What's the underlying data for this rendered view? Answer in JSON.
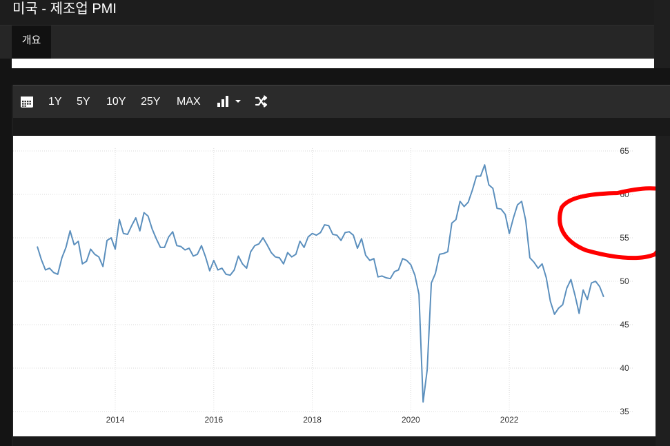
{
  "header": {
    "title": "미국 - 제조업 PMI"
  },
  "tabs": [
    {
      "label": "개요",
      "active": true
    }
  ],
  "toolbar": {
    "calendar_icon": "calendar-icon",
    "ranges": [
      "1Y",
      "5Y",
      "10Y",
      "25Y",
      "MAX"
    ],
    "chart_type_icon": "bar-chart-icon",
    "dropdown_icon": "caret-down-icon",
    "compare_icon": "shuffle-icon"
  },
  "colors": {
    "line": "#5b8fbd",
    "annotation": "#ff0000",
    "grid": "#d8d8d8"
  },
  "chart_data": {
    "type": "line",
    "title": "",
    "xlabel": "",
    "ylabel": "",
    "x_ticks": [
      "2014",
      "2016",
      "2018",
      "2020",
      "2022"
    ],
    "y_ticks": [
      35,
      40,
      45,
      50,
      55,
      60,
      65
    ],
    "xlim": [
      "2012-06",
      "2023-11"
    ],
    "ylim": [
      35,
      65
    ],
    "y_axis_side": "right",
    "grid": true,
    "legend": "none",
    "annotation": "hand-drawn red circle over the 55–60 region at the right edge",
    "series": [
      {
        "values": [
          {
            "x": "2012-06",
            "y": 54.0
          },
          {
            "x": "2012-07",
            "y": 52.5
          },
          {
            "x": "2012-08",
            "y": 51.3
          },
          {
            "x": "2012-09",
            "y": 51.5
          },
          {
            "x": "2012-10",
            "y": 51.0
          },
          {
            "x": "2012-11",
            "y": 50.8
          },
          {
            "x": "2012-12",
            "y": 52.7
          },
          {
            "x": "2013-01",
            "y": 53.9
          },
          {
            "x": "2013-02",
            "y": 55.8
          },
          {
            "x": "2013-03",
            "y": 54.2
          },
          {
            "x": "2013-04",
            "y": 54.6
          },
          {
            "x": "2013-05",
            "y": 52.0
          },
          {
            "x": "2013-06",
            "y": 52.3
          },
          {
            "x": "2013-07",
            "y": 53.7
          },
          {
            "x": "2013-08",
            "y": 53.1
          },
          {
            "x": "2013-09",
            "y": 52.8
          },
          {
            "x": "2013-10",
            "y": 51.7
          },
          {
            "x": "2013-11",
            "y": 54.7
          },
          {
            "x": "2013-12",
            "y": 55.0
          },
          {
            "x": "2014-01",
            "y": 53.7
          },
          {
            "x": "2014-02",
            "y": 57.1
          },
          {
            "x": "2014-03",
            "y": 55.5
          },
          {
            "x": "2014-04",
            "y": 55.4
          },
          {
            "x": "2014-05",
            "y": 56.4
          },
          {
            "x": "2014-06",
            "y": 57.3
          },
          {
            "x": "2014-07",
            "y": 55.8
          },
          {
            "x": "2014-08",
            "y": 57.9
          },
          {
            "x": "2014-09",
            "y": 57.5
          },
          {
            "x": "2014-10",
            "y": 56.0
          },
          {
            "x": "2014-11",
            "y": 54.9
          },
          {
            "x": "2014-12",
            "y": 53.9
          },
          {
            "x": "2015-01",
            "y": 53.9
          },
          {
            "x": "2015-02",
            "y": 55.1
          },
          {
            "x": "2015-03",
            "y": 55.7
          },
          {
            "x": "2015-04",
            "y": 54.1
          },
          {
            "x": "2015-05",
            "y": 54.0
          },
          {
            "x": "2015-06",
            "y": 53.6
          },
          {
            "x": "2015-07",
            "y": 53.8
          },
          {
            "x": "2015-08",
            "y": 52.9
          },
          {
            "x": "2015-09",
            "y": 53.1
          },
          {
            "x": "2015-10",
            "y": 54.1
          },
          {
            "x": "2015-11",
            "y": 52.8
          },
          {
            "x": "2015-12",
            "y": 51.2
          },
          {
            "x": "2016-01",
            "y": 52.4
          },
          {
            "x": "2016-02",
            "y": 51.3
          },
          {
            "x": "2016-03",
            "y": 51.5
          },
          {
            "x": "2016-04",
            "y": 50.8
          },
          {
            "x": "2016-05",
            "y": 50.7
          },
          {
            "x": "2016-06",
            "y": 51.3
          },
          {
            "x": "2016-07",
            "y": 52.9
          },
          {
            "x": "2016-08",
            "y": 52.0
          },
          {
            "x": "2016-09",
            "y": 51.5
          },
          {
            "x": "2016-10",
            "y": 53.4
          },
          {
            "x": "2016-11",
            "y": 54.1
          },
          {
            "x": "2016-12",
            "y": 54.3
          },
          {
            "x": "2017-01",
            "y": 55.0
          },
          {
            "x": "2017-02",
            "y": 54.2
          },
          {
            "x": "2017-03",
            "y": 53.3
          },
          {
            "x": "2017-04",
            "y": 52.8
          },
          {
            "x": "2017-05",
            "y": 52.7
          },
          {
            "x": "2017-06",
            "y": 52.0
          },
          {
            "x": "2017-07",
            "y": 53.3
          },
          {
            "x": "2017-08",
            "y": 52.8
          },
          {
            "x": "2017-09",
            "y": 53.1
          },
          {
            "x": "2017-10",
            "y": 54.6
          },
          {
            "x": "2017-11",
            "y": 53.9
          },
          {
            "x": "2017-12",
            "y": 55.1
          },
          {
            "x": "2018-01",
            "y": 55.5
          },
          {
            "x": "2018-02",
            "y": 55.3
          },
          {
            "x": "2018-03",
            "y": 55.6
          },
          {
            "x": "2018-04",
            "y": 56.5
          },
          {
            "x": "2018-05",
            "y": 56.4
          },
          {
            "x": "2018-06",
            "y": 55.4
          },
          {
            "x": "2018-07",
            "y": 55.3
          },
          {
            "x": "2018-08",
            "y": 54.7
          },
          {
            "x": "2018-09",
            "y": 55.6
          },
          {
            "x": "2018-10",
            "y": 55.7
          },
          {
            "x": "2018-11",
            "y": 55.3
          },
          {
            "x": "2018-12",
            "y": 53.8
          },
          {
            "x": "2019-01",
            "y": 54.9
          },
          {
            "x": "2019-02",
            "y": 53.0
          },
          {
            "x": "2019-03",
            "y": 52.4
          },
          {
            "x": "2019-04",
            "y": 52.6
          },
          {
            "x": "2019-05",
            "y": 50.5
          },
          {
            "x": "2019-06",
            "y": 50.6
          },
          {
            "x": "2019-07",
            "y": 50.4
          },
          {
            "x": "2019-08",
            "y": 50.3
          },
          {
            "x": "2019-09",
            "y": 51.1
          },
          {
            "x": "2019-10",
            "y": 51.3
          },
          {
            "x": "2019-11",
            "y": 52.6
          },
          {
            "x": "2019-12",
            "y": 52.4
          },
          {
            "x": "2020-01",
            "y": 51.9
          },
          {
            "x": "2020-02",
            "y": 50.7
          },
          {
            "x": "2020-03",
            "y": 48.5
          },
          {
            "x": "2020-04",
            "y": 36.1
          },
          {
            "x": "2020-05",
            "y": 39.8
          },
          {
            "x": "2020-06",
            "y": 49.8
          },
          {
            "x": "2020-07",
            "y": 50.9
          },
          {
            "x": "2020-08",
            "y": 53.1
          },
          {
            "x": "2020-09",
            "y": 53.2
          },
          {
            "x": "2020-10",
            "y": 53.4
          },
          {
            "x": "2020-11",
            "y": 56.7
          },
          {
            "x": "2020-12",
            "y": 57.1
          },
          {
            "x": "2021-01",
            "y": 59.2
          },
          {
            "x": "2021-02",
            "y": 58.6
          },
          {
            "x": "2021-03",
            "y": 59.1
          },
          {
            "x": "2021-04",
            "y": 60.5
          },
          {
            "x": "2021-05",
            "y": 62.1
          },
          {
            "x": "2021-06",
            "y": 62.1
          },
          {
            "x": "2021-07",
            "y": 63.4
          },
          {
            "x": "2021-08",
            "y": 61.1
          },
          {
            "x": "2021-09",
            "y": 60.7
          },
          {
            "x": "2021-10",
            "y": 58.4
          },
          {
            "x": "2021-11",
            "y": 58.3
          },
          {
            "x": "2021-12",
            "y": 57.7
          },
          {
            "x": "2022-01",
            "y": 55.5
          },
          {
            "x": "2022-02",
            "y": 57.3
          },
          {
            "x": "2022-03",
            "y": 58.8
          },
          {
            "x": "2022-04",
            "y": 59.2
          },
          {
            "x": "2022-05",
            "y": 57.0
          },
          {
            "x": "2022-06",
            "y": 52.7
          },
          {
            "x": "2022-07",
            "y": 52.2
          },
          {
            "x": "2022-08",
            "y": 51.5
          },
          {
            "x": "2022-09",
            "y": 52.0
          },
          {
            "x": "2022-10",
            "y": 50.4
          },
          {
            "x": "2022-11",
            "y": 47.7
          },
          {
            "x": "2022-12",
            "y": 46.2
          },
          {
            "x": "2023-01",
            "y": 46.9
          },
          {
            "x": "2023-02",
            "y": 47.3
          },
          {
            "x": "2023-03",
            "y": 49.2
          },
          {
            "x": "2023-04",
            "y": 50.2
          },
          {
            "x": "2023-05",
            "y": 48.4
          },
          {
            "x": "2023-06",
            "y": 46.3
          },
          {
            "x": "2023-07",
            "y": 49.0
          },
          {
            "x": "2023-08",
            "y": 47.9
          },
          {
            "x": "2023-09",
            "y": 49.8
          },
          {
            "x": "2023-10",
            "y": 50.0
          },
          {
            "x": "2023-11",
            "y": 49.4
          },
          {
            "x": "2023-12",
            "y": 48.2
          }
        ]
      }
    ]
  }
}
